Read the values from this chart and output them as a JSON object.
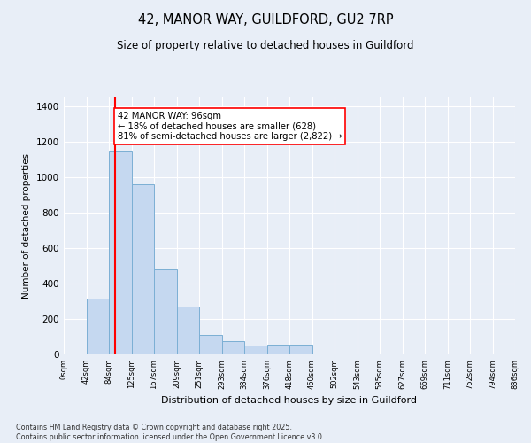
{
  "title1": "42, MANOR WAY, GUILDFORD, GU2 7RP",
  "title2": "Size of property relative to detached houses in Guildford",
  "xlabel": "Distribution of detached houses by size in Guildford",
  "ylabel": "Number of detached properties",
  "bin_labels": [
    "0sqm",
    "42sqm",
    "84sqm",
    "125sqm",
    "167sqm",
    "209sqm",
    "251sqm",
    "293sqm",
    "334sqm",
    "376sqm",
    "418sqm",
    "460sqm",
    "502sqm",
    "543sqm",
    "585sqm",
    "627sqm",
    "669sqm",
    "711sqm",
    "752sqm",
    "794sqm",
    "836sqm"
  ],
  "bar_values": [
    0,
    315,
    1150,
    960,
    480,
    270,
    110,
    75,
    50,
    55,
    55,
    0,
    0,
    0,
    0,
    0,
    0,
    0,
    0,
    0
  ],
  "bar_color": "#c5d8f0",
  "bar_edge_color": "#7bafd4",
  "vline_color": "red",
  "vline_x_bin": 1.33,
  "annotation_text": "42 MANOR WAY: 96sqm\n← 18% of detached houses are smaller (628)\n81% of semi-detached houses are larger (2,822) →",
  "annotation_box_color": "white",
  "annotation_box_edge_color": "red",
  "ylim": [
    0,
    1450
  ],
  "yticks": [
    0,
    200,
    400,
    600,
    800,
    1000,
    1200,
    1400
  ],
  "background_color": "#e8eef7",
  "footer1": "Contains HM Land Registry data © Crown copyright and database right 2025.",
  "footer2": "Contains public sector information licensed under the Open Government Licence v3.0.",
  "bin_width": 42,
  "n_bins": 20,
  "vline_x": 96
}
